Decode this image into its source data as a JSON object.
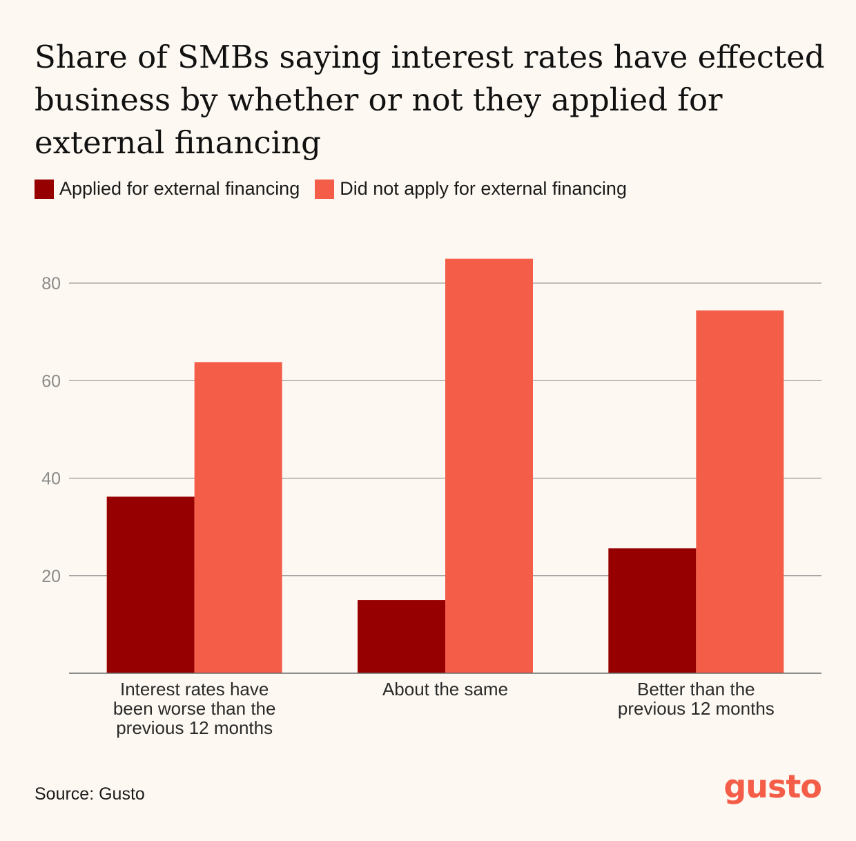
{
  "title": "Share of SMBs saying interest rates have effected business by whether or not they applied for external financing",
  "legend": [
    {
      "label": "Applied for external financing",
      "color": "#960000"
    },
    {
      "label": "Did not apply for external financing",
      "color": "#f45d48"
    }
  ],
  "source": "Source: Gusto",
  "logo_text": "gusto",
  "chart_data": {
    "type": "bar",
    "title": "Share of SMBs saying interest rates have effected business by whether or not they applied for external financing",
    "categories": [
      [
        "Interest rates have",
        "been worse than the",
        "previous 12 months"
      ],
      [
        "About the same"
      ],
      [
        "Better than the",
        "previous 12 months"
      ]
    ],
    "series": [
      {
        "name": "Applied for external financing",
        "values": [
          36.2,
          15.0,
          25.6
        ],
        "color": "#960000"
      },
      {
        "name": "Did not apply for external financing",
        "values": [
          63.8,
          85.0,
          74.4
        ],
        "color": "#f45d48"
      }
    ],
    "yticks": [
      20,
      40,
      60,
      80
    ],
    "ylim": [
      0,
      100
    ],
    "xlabel": "",
    "ylabel": "",
    "grid": true,
    "legend_position": "top-left"
  }
}
